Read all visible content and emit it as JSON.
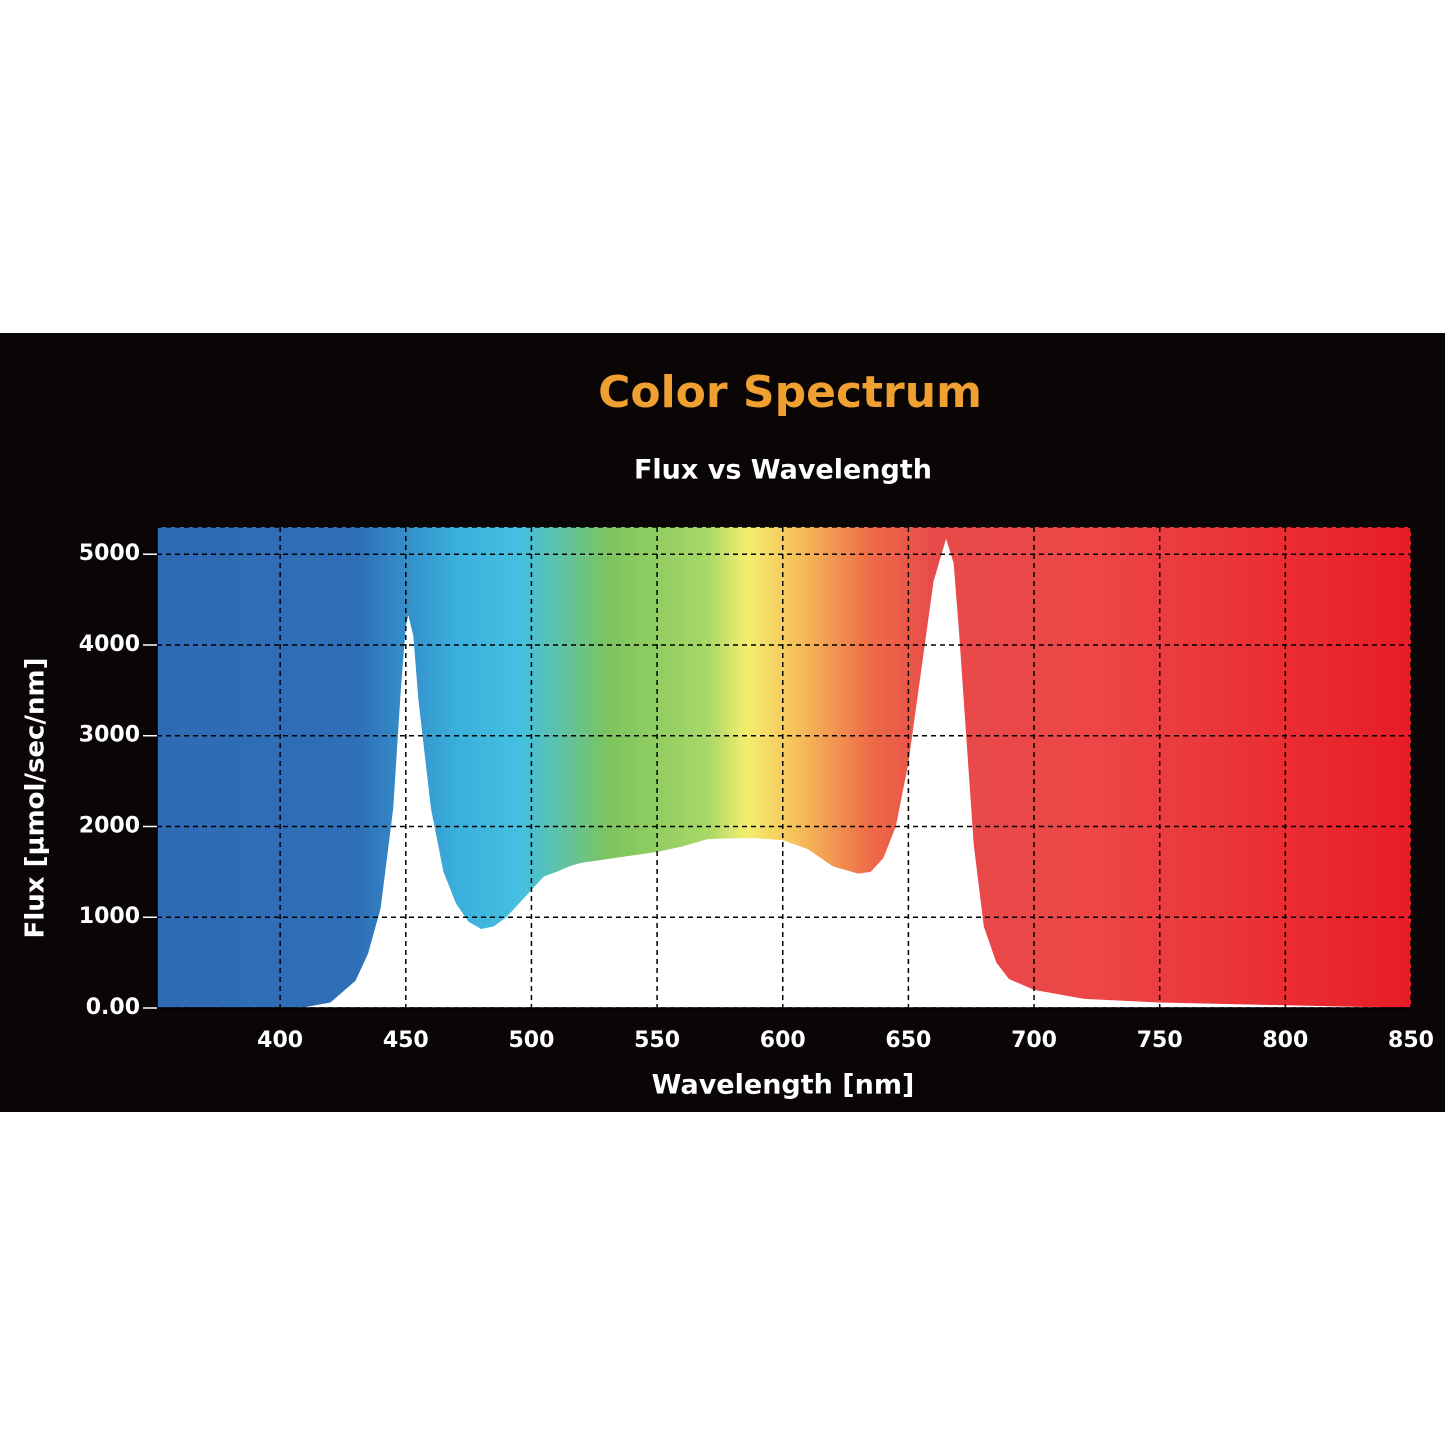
{
  "chart_data": {
    "type": "area",
    "title": "Color Spectrum",
    "subtitle": "Flux vs Wavelength",
    "x_label": "Wavelength [nm]",
    "y_label": "Flux [µmol/sec/nm]",
    "color": "#ffffff",
    "title_color": "#f0a030",
    "grid": true,
    "xlim": [
      351,
      850
    ],
    "ylim": [
      0,
      5300
    ],
    "xticks": [
      400,
      450,
      500,
      550,
      600,
      650,
      700,
      750,
      800,
      850
    ],
    "yticks": [
      {
        "value": 0,
        "label": "0.00"
      },
      1000,
      2000,
      3000,
      4000,
      5000
    ],
    "x": [
      400,
      410,
      420,
      430,
      435,
      440,
      445,
      448,
      450,
      451,
      453,
      455,
      460,
      465,
      470,
      475,
      480,
      485,
      490,
      495,
      500,
      505,
      510,
      515,
      520,
      525,
      530,
      540,
      550,
      560,
      570,
      580,
      590,
      600,
      610,
      620,
      630,
      635,
      640,
      645,
      650,
      655,
      660,
      665,
      668,
      670,
      673,
      676,
      680,
      685,
      690,
      700,
      720,
      750,
      800,
      850
    ],
    "values": [
      0,
      10,
      60,
      300,
      600,
      1100,
      2200,
      3500,
      4200,
      4330,
      4100,
      3400,
      2200,
      1500,
      1150,
      950,
      870,
      900,
      1000,
      1150,
      1300,
      1450,
      1500,
      1560,
      1600,
      1620,
      1640,
      1680,
      1720,
      1780,
      1860,
      1870,
      1870,
      1850,
      1750,
      1560,
      1480,
      1500,
      1650,
      2000,
      2700,
      3700,
      4700,
      5170,
      4900,
      4200,
      3000,
      1800,
      900,
      500,
      320,
      200,
      100,
      60,
      30,
      0
    ]
  }
}
